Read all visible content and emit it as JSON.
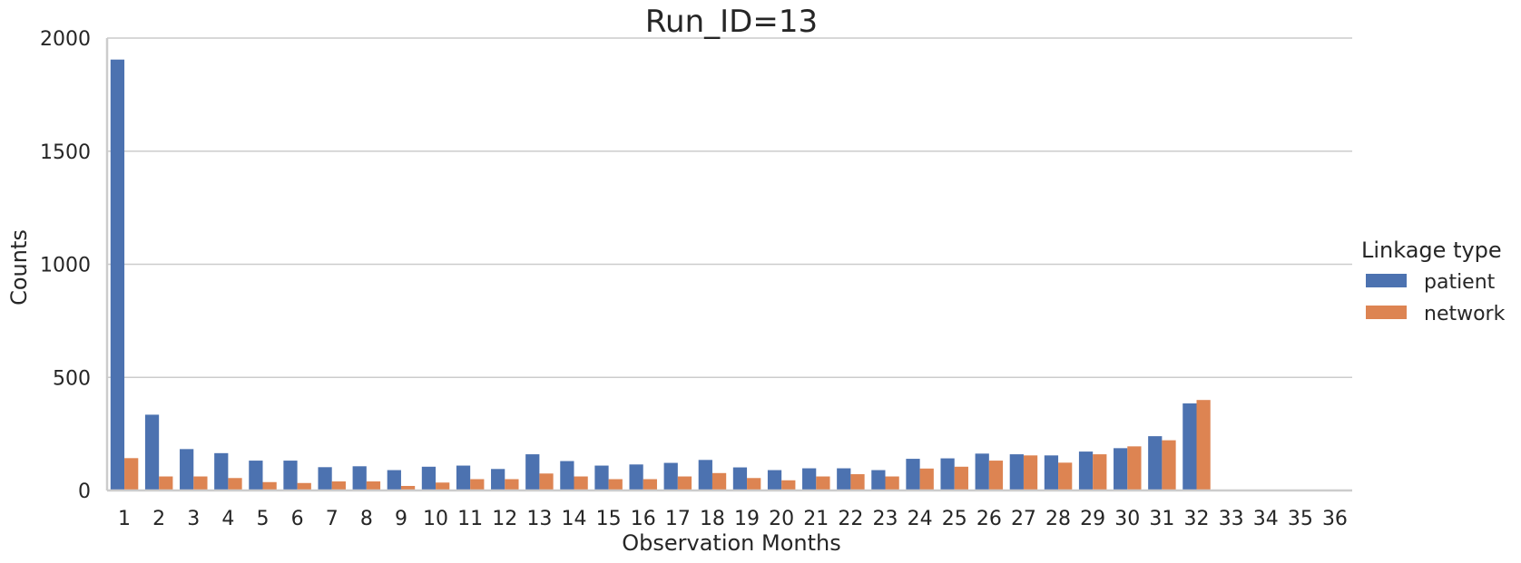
{
  "chart_data": {
    "type": "bar",
    "title": "Run_ID=13",
    "xlabel": "Observation Months",
    "ylabel": "Counts",
    "ylim": [
      0,
      2000
    ],
    "yticks": [
      0,
      500,
      1000,
      1500,
      2000
    ],
    "grid": "horizontal",
    "legend_placement": "right",
    "legend_title": "Linkage type",
    "categories": [
      "1",
      "2",
      "3",
      "4",
      "5",
      "6",
      "7",
      "8",
      "9",
      "10",
      "11",
      "12",
      "13",
      "14",
      "15",
      "16",
      "17",
      "18",
      "19",
      "20",
      "21",
      "22",
      "23",
      "24",
      "25",
      "26",
      "27",
      "28",
      "29",
      "30",
      "31",
      "32",
      "33",
      "34",
      "35",
      "36"
    ],
    "series": [
      {
        "name": "patient",
        "color": "#4c72b0",
        "values": [
          1905,
          335,
          183,
          165,
          132,
          132,
          103,
          107,
          90,
          105,
          110,
          95,
          160,
          130,
          110,
          115,
          122,
          135,
          102,
          90,
          98,
          98,
          90,
          140,
          142,
          163,
          160,
          155,
          172,
          187,
          240,
          385,
          0,
          0,
          0,
          0
        ]
      },
      {
        "name": "network",
        "color": "#dd8452",
        "values": [
          143,
          62,
          62,
          55,
          37,
          33,
          40,
          40,
          20,
          35,
          50,
          50,
          75,
          62,
          50,
          50,
          62,
          77,
          55,
          45,
          62,
          72,
          62,
          97,
          105,
          132,
          155,
          123,
          160,
          195,
          222,
          400,
          0,
          0,
          0,
          0
        ]
      }
    ]
  }
}
